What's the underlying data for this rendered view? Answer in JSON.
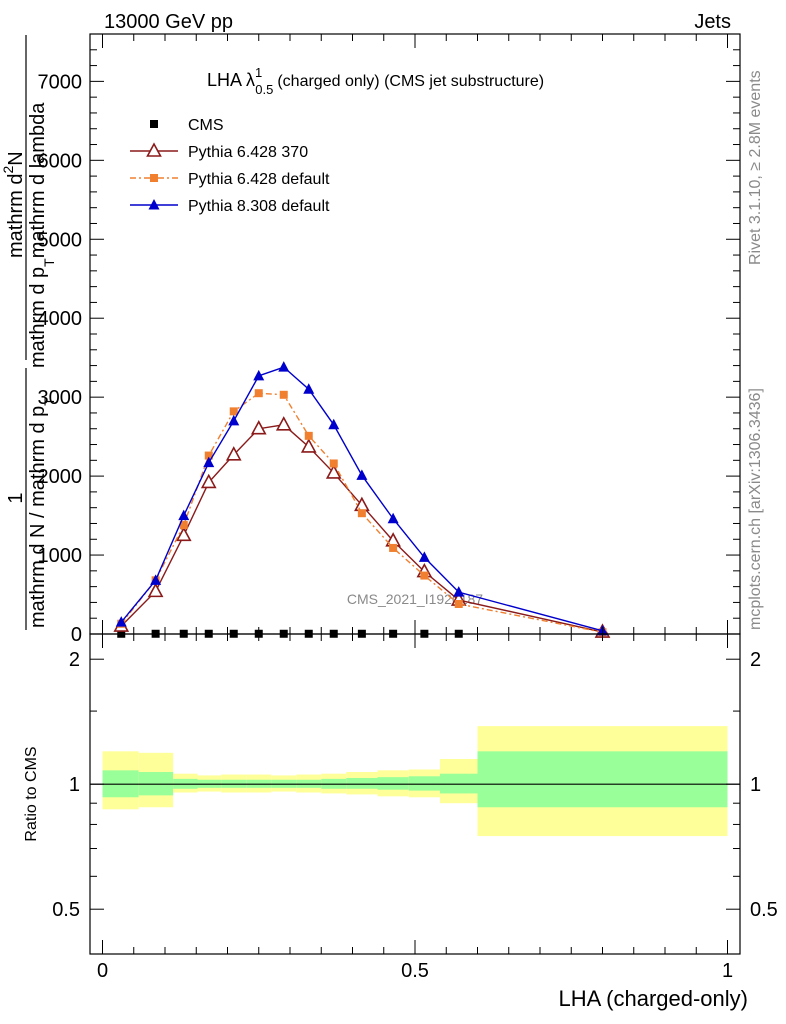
{
  "header": {
    "left": "13000 GeV pp",
    "right": "Jets"
  },
  "side_labels": {
    "rivet": "Rivet 3.1.10, ≥ 2.8M events",
    "mcplots": "mcplots.cern.ch [arXiv:1306.3436]"
  },
  "watermark": "CMS_2021_I1920187",
  "chart_data": [
    {
      "type": "line",
      "title": "LHA λ¹₀.₅ (charged only) (CMS jet substructure)",
      "title_main": "LHA λ",
      "title_sup": "1",
      "title_sub": "0.5",
      "title_rest": "(charged only) (CMS jet substructure)",
      "ylabel": "1 / mathrm d N / mathrm d p_T mathrm d^2N / mathrm d p_T mathrm d lambda",
      "ylabel_parts": [
        "1",
        "mathrm d N / mathrm d p",
        "T",
        "mathrm d",
        "2",
        "N",
        "mathrm d p",
        "T",
        "mathrm d lambda"
      ],
      "ylim": [
        0,
        7600
      ],
      "xlim": [
        -0.02,
        1.02
      ],
      "y_ticks": [
        0,
        1000,
        2000,
        3000,
        4000,
        5000,
        6000,
        7000
      ],
      "y_tick_labels": [
        "0",
        "1000",
        "2000",
        "3000",
        "4000",
        "5000",
        "6000",
        "7000"
      ],
      "legend_position": "top-left",
      "series": [
        {
          "name": "CMS",
          "color": "#000000",
          "marker": "square",
          "x": [
            0.03,
            0.085,
            0.13,
            0.17,
            0.21,
            0.25,
            0.29,
            0.33,
            0.37,
            0.415,
            0.465,
            0.515,
            0.57
          ],
          "values": [
            3,
            3,
            3,
            3,
            3,
            3,
            3,
            3,
            3,
            3,
            3,
            3,
            3
          ]
        },
        {
          "name": "Pythia 6.428 370",
          "color": "#8b1a1a",
          "marker": "open-triangle",
          "x": [
            0.03,
            0.085,
            0.13,
            0.17,
            0.21,
            0.25,
            0.29,
            0.33,
            0.37,
            0.415,
            0.465,
            0.515,
            0.57,
            0.8
          ],
          "values": [
            100,
            540,
            1250,
            1920,
            2270,
            2600,
            2650,
            2370,
            2040,
            1630,
            1180,
            790,
            430,
            25
          ]
        },
        {
          "name": "Pythia 6.428 default",
          "color": "#f08030",
          "marker": "square",
          "dashed": true,
          "x": [
            0.03,
            0.085,
            0.13,
            0.17,
            0.21,
            0.25,
            0.29,
            0.33,
            0.37,
            0.415,
            0.465,
            0.515,
            0.57,
            0.8
          ],
          "values": [
            130,
            680,
            1380,
            2260,
            2820,
            3050,
            3030,
            2510,
            2160,
            1530,
            1090,
            740,
            380,
            22
          ]
        },
        {
          "name": "Pythia 8.308 default",
          "color": "#0000cc",
          "marker": "filled-triangle",
          "x": [
            0.03,
            0.085,
            0.13,
            0.17,
            0.21,
            0.25,
            0.29,
            0.33,
            0.37,
            0.415,
            0.465,
            0.515,
            0.57,
            0.8
          ],
          "values": [
            150,
            680,
            1500,
            2170,
            2700,
            3270,
            3380,
            3100,
            2650,
            2010,
            1460,
            970,
            530,
            40
          ]
        }
      ]
    },
    {
      "type": "area",
      "ylabel": "Ratio to CMS",
      "xlabel": "LHA (charged-only)",
      "ylim": [
        0.39,
        2.3
      ],
      "scale": "log",
      "xlim": [
        -0.02,
        1.02
      ],
      "x_ticks": [
        0,
        0.5,
        1
      ],
      "x_tick_labels": [
        "0",
        "0.5",
        "1"
      ],
      "y_ticks": [
        0.5,
        1,
        2
      ],
      "y_tick_labels": [
        "0.5",
        "1",
        "2"
      ],
      "band_colors": {
        "stat": "#99ff99",
        "total": "#ffff99"
      },
      "bins": [
        {
          "lo": 0.0,
          "hi": 0.058,
          "stat": [
            0.93,
            1.08
          ],
          "total": [
            0.87,
            1.2
          ]
        },
        {
          "lo": 0.058,
          "hi": 0.113,
          "stat": [
            0.94,
            1.07
          ],
          "total": [
            0.88,
            1.19
          ]
        },
        {
          "lo": 0.113,
          "hi": 0.152,
          "stat": [
            0.975,
            1.03
          ],
          "total": [
            0.955,
            1.06
          ]
        },
        {
          "lo": 0.152,
          "hi": 0.19,
          "stat": [
            0.98,
            1.025
          ],
          "total": [
            0.96,
            1.05
          ]
        },
        {
          "lo": 0.19,
          "hi": 0.23,
          "stat": [
            0.98,
            1.025
          ],
          "total": [
            0.955,
            1.055
          ]
        },
        {
          "lo": 0.23,
          "hi": 0.27,
          "stat": [
            0.98,
            1.025
          ],
          "total": [
            0.955,
            1.055
          ]
        },
        {
          "lo": 0.27,
          "hi": 0.31,
          "stat": [
            0.98,
            1.025
          ],
          "total": [
            0.96,
            1.05
          ]
        },
        {
          "lo": 0.31,
          "hi": 0.35,
          "stat": [
            0.98,
            1.025
          ],
          "total": [
            0.955,
            1.055
          ]
        },
        {
          "lo": 0.35,
          "hi": 0.39,
          "stat": [
            0.975,
            1.03
          ],
          "total": [
            0.95,
            1.06
          ]
        },
        {
          "lo": 0.39,
          "hi": 0.44,
          "stat": [
            0.975,
            1.035
          ],
          "total": [
            0.945,
            1.07
          ]
        },
        {
          "lo": 0.44,
          "hi": 0.49,
          "stat": [
            0.97,
            1.04
          ],
          "total": [
            0.935,
            1.08
          ]
        },
        {
          "lo": 0.49,
          "hi": 0.54,
          "stat": [
            0.965,
            1.045
          ],
          "total": [
            0.93,
            1.085
          ]
        },
        {
          "lo": 0.54,
          "hi": 0.6,
          "stat": [
            0.95,
            1.06
          ],
          "total": [
            0.9,
            1.15
          ]
        },
        {
          "lo": 0.6,
          "hi": 1.0,
          "stat": [
            0.88,
            1.2
          ],
          "total": [
            0.75,
            1.38
          ]
        }
      ]
    }
  ]
}
